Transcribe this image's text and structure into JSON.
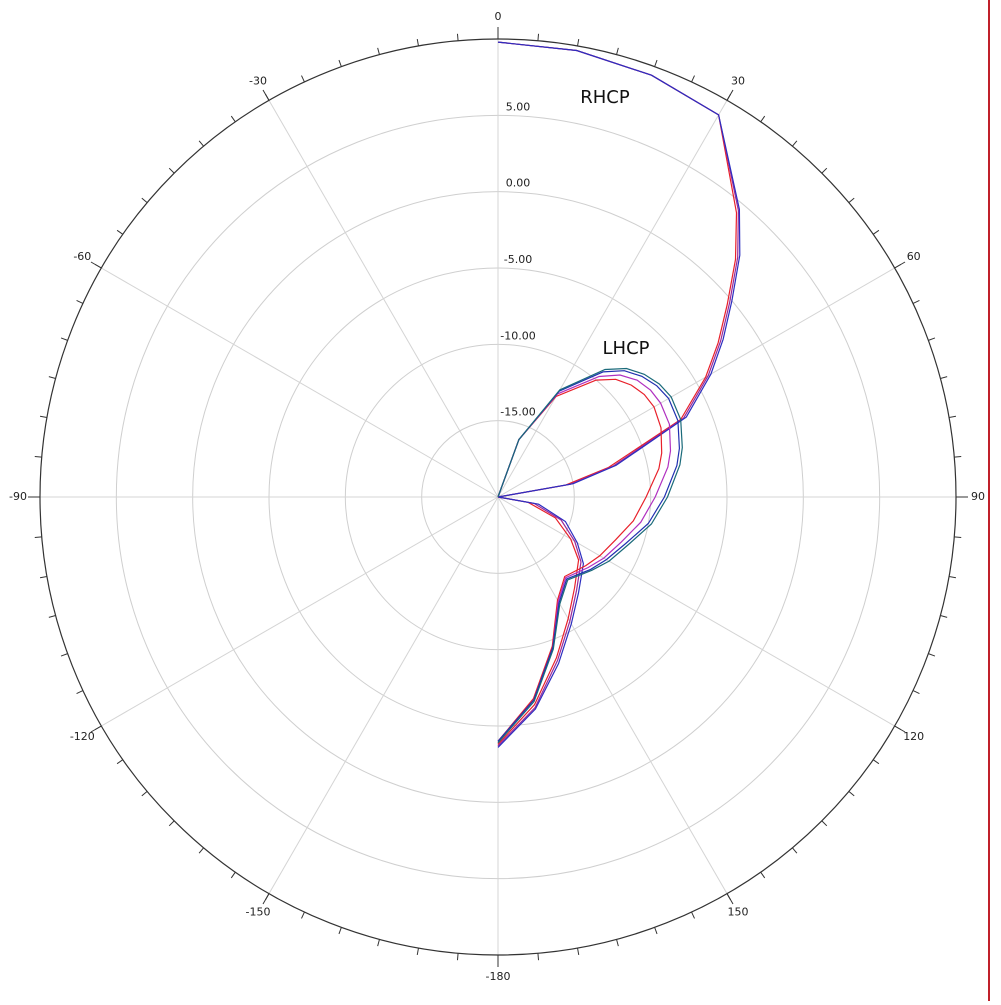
{
  "chart_data": {
    "type": "polar",
    "theta": [
      0,
      10,
      20,
      30,
      40,
      45,
      50,
      55,
      60,
      67,
      75,
      80,
      90,
      100,
      110,
      120,
      128,
      140,
      150,
      160,
      170,
      180
    ],
    "series": [
      {
        "color": "#e8202a",
        "values": [
          9.8,
          9.7,
          9.4,
          8.9,
          4.3,
          2,
          -0.4,
          -2.4,
          -4.3,
          -7,
          -12.5,
          -15.5,
          -20,
          -18,
          -16,
          -14.5,
          -13.3,
          -12.2,
          -10.8,
          -8.8,
          -6.2,
          -3.8
        ]
      },
      {
        "color": "#9a2a9a",
        "values": [
          9.8,
          9.7,
          9.4,
          8.9,
          4.5,
          2.2,
          -0.2,
          -2.2,
          -4.1,
          -6.8,
          -12.2,
          -15.2,
          -20,
          -17.6,
          -15.6,
          -14.2,
          -13.1,
          -12,
          -10.6,
          -8.6,
          -6,
          -3.7
        ]
      },
      {
        "color": "#2c2ec0",
        "values": [
          9.8,
          9.7,
          9.4,
          8.9,
          4.6,
          2.4,
          0,
          -2,
          -3.9,
          -6.6,
          -12,
          -15,
          -20,
          -17.3,
          -15.3,
          -14,
          -12.9,
          -11.8,
          -10.4,
          -8.4,
          -5.9,
          -3.6
        ]
      },
      {
        "color": "#e8202a",
        "values": [
          -20,
          -20,
          -16,
          -12.4,
          -10,
          -9.1,
          -8.6,
          -8.3,
          -8.2,
          -8.4,
          -8.9,
          -9.3,
          -10.3,
          -11,
          -11.8,
          -12.3,
          -12.7,
          -13.2,
          -12.2,
          -9.6,
          -6.6,
          -4
        ]
      },
      {
        "color": "#b030c0",
        "values": [
          -20,
          -20,
          -16,
          -12.2,
          -9.7,
          -8.7,
          -8.1,
          -7.8,
          -7.7,
          -7.8,
          -8.3,
          -8.7,
          -9.7,
          -10.5,
          -11.4,
          -12,
          -12.5,
          -13.1,
          -12.1,
          -9.5,
          -6.5,
          -4
        ]
      },
      {
        "color": "#2030b0",
        "values": [
          -20,
          -20,
          -16,
          -12,
          -9.3,
          -8.3,
          -7.7,
          -7.3,
          -7.1,
          -7.2,
          -7.7,
          -8.1,
          -9.1,
          -10,
          -11.1,
          -11.8,
          -12.3,
          -13,
          -12,
          -9.5,
          -6.5,
          -4
        ]
      },
      {
        "color": "#1a6a7a",
        "values": [
          -20,
          -20,
          -16,
          -11.9,
          -9.1,
          -8.1,
          -7.5,
          -7.1,
          -6.9,
          -7,
          -7.5,
          -7.9,
          -8.9,
          -9.8,
          -10.9,
          -11.6,
          -12.2,
          -12.9,
          -11.9,
          -9.4,
          -6.4,
          -3.9
        ]
      }
    ],
    "annotations": [
      "RHCP",
      "LHCP"
    ],
    "rlim": [
      -20,
      10
    ],
    "rticks": [
      {
        "value": -15,
        "label": "-15.00"
      },
      {
        "value": -10,
        "label": "-10.00"
      },
      {
        "value": -5,
        "label": "-5.00"
      },
      {
        "value": 0,
        "label": "0.00"
      },
      {
        "value": 5,
        "label": "5.00"
      }
    ],
    "thetaticks": [
      0,
      30,
      60,
      90,
      120,
      150,
      -180,
      -150,
      -120,
      -90,
      -60,
      -30
    ],
    "theta_minor_step": 5,
    "grid": true
  }
}
